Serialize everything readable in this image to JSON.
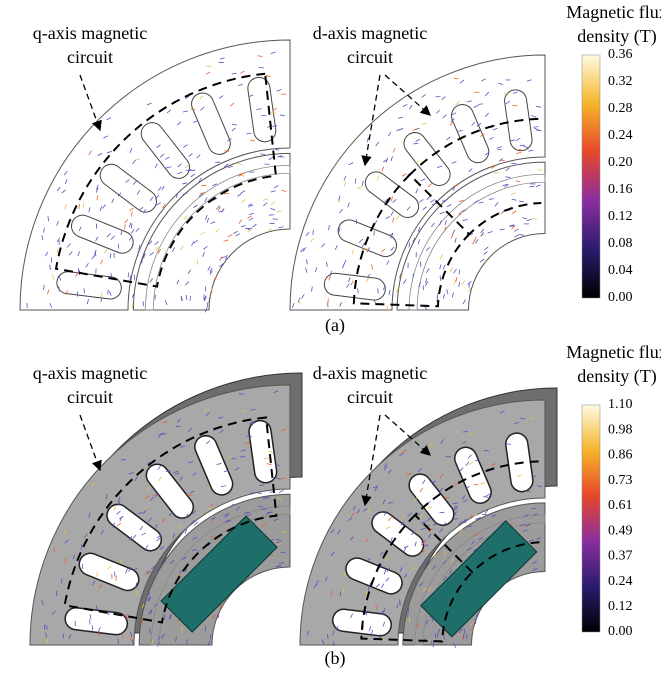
{
  "panels": [
    {
      "caption": "(a)",
      "left_label": [
        "q-axis magnetic",
        "circuit"
      ],
      "right_label": [
        "d-axis magnetic",
        "circuit"
      ],
      "colorbar": {
        "title": [
          "Magnetic flux",
          "density (T)"
        ],
        "ticks": [
          "0.36",
          "0.32",
          "0.28",
          "0.24",
          "0.20",
          "0.16",
          "0.12",
          "0.08",
          "0.04",
          "0.00"
        ]
      }
    },
    {
      "caption": "(b)",
      "left_label": [
        "q-axis magnetic",
        "circuit"
      ],
      "right_label": [
        "d-axis magnetic",
        "circuit"
      ],
      "colorbar": {
        "title": [
          "Magnetic flux",
          "density (T)"
        ],
        "ticks": [
          "1.10",
          "0.98",
          "0.86",
          "0.73",
          "0.61",
          "0.49",
          "0.37",
          "0.24",
          "0.12",
          "0.00"
        ]
      }
    }
  ]
}
